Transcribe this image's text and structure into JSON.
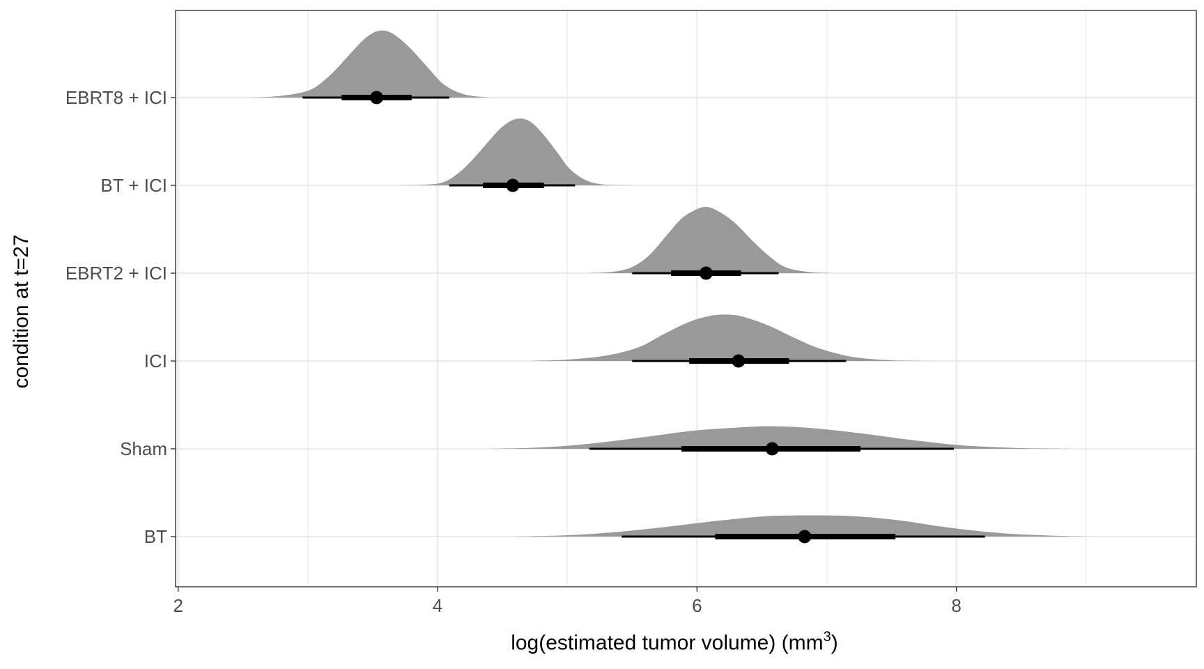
{
  "chart_data": {
    "type": "halfeye",
    "xlabel": "log(estimated tumor volume) (mm",
    "xlabel_sup": "3",
    "xlabel_close": ")",
    "ylabel": "condition at t=27",
    "xlim": [
      1.98,
      9.85
    ],
    "x_ticks": [
      2,
      4,
      6,
      8
    ],
    "x_minor": [
      3,
      5,
      7,
      9
    ],
    "grid": true,
    "colors": {
      "density": "#999999",
      "interval": "#000000",
      "grid": "#ebebeb",
      "panel_border": "#333333"
    },
    "categories": [
      "EBRT8 + ICI",
      "BT + ICI",
      "EBRT2 + ICI",
      "ICI",
      "Sham",
      "BT"
    ],
    "series": [
      {
        "label": "EBRT8 + ICI",
        "median": 3.53,
        "ci66": [
          3.26,
          3.8
        ],
        "ci95": [
          2.96,
          4.09
        ],
        "density": [
          [
            2.55,
            0
          ],
          [
            2.7,
            0.01
          ],
          [
            2.85,
            0.04
          ],
          [
            3.0,
            0.1
          ],
          [
            3.1,
            0.21
          ],
          [
            3.22,
            0.42
          ],
          [
            3.34,
            0.67
          ],
          [
            3.45,
            0.88
          ],
          [
            3.55,
            0.98
          ],
          [
            3.65,
            0.94
          ],
          [
            3.78,
            0.74
          ],
          [
            3.92,
            0.45
          ],
          [
            4.05,
            0.19
          ],
          [
            4.2,
            0.05
          ],
          [
            4.4,
            0
          ]
        ]
      },
      {
        "label": "BT + ICI",
        "median": 4.58,
        "ci66": [
          4.35,
          4.82
        ],
        "ci95": [
          4.09,
          5.06
        ],
        "density": [
          [
            3.7,
            0
          ],
          [
            3.9,
            0.01
          ],
          [
            4.05,
            0.05
          ],
          [
            4.18,
            0.21
          ],
          [
            4.3,
            0.44
          ],
          [
            4.4,
            0.66
          ],
          [
            4.5,
            0.86
          ],
          [
            4.6,
            0.97
          ],
          [
            4.7,
            0.95
          ],
          [
            4.8,
            0.78
          ],
          [
            4.92,
            0.49
          ],
          [
            5.02,
            0.24
          ],
          [
            5.15,
            0.07
          ],
          [
            5.3,
            0.01
          ],
          [
            5.55,
            0
          ]
        ]
      },
      {
        "label": "EBRT2 + ICI",
        "median": 6.07,
        "ci66": [
          5.8,
          6.34
        ],
        "ci95": [
          5.5,
          6.63
        ],
        "density": [
          [
            5.15,
            0
          ],
          [
            5.35,
            0.02
          ],
          [
            5.5,
            0.09
          ],
          [
            5.63,
            0.26
          ],
          [
            5.76,
            0.54
          ],
          [
            5.87,
            0.78
          ],
          [
            5.97,
            0.91
          ],
          [
            6.07,
            0.97
          ],
          [
            6.17,
            0.9
          ],
          [
            6.29,
            0.74
          ],
          [
            6.42,
            0.49
          ],
          [
            6.55,
            0.26
          ],
          [
            6.68,
            0.09
          ],
          [
            6.85,
            0.02
          ],
          [
            7.05,
            0
          ]
        ]
      },
      {
        "label": "ICI",
        "median": 6.32,
        "ci66": [
          5.94,
          6.71
        ],
        "ci95": [
          5.5,
          7.15
        ],
        "density": [
          [
            4.7,
            0
          ],
          [
            5.0,
            0.02
          ],
          [
            5.3,
            0.08
          ],
          [
            5.55,
            0.2
          ],
          [
            5.75,
            0.4
          ],
          [
            5.95,
            0.58
          ],
          [
            6.1,
            0.66
          ],
          [
            6.22,
            0.68
          ],
          [
            6.35,
            0.65
          ],
          [
            6.55,
            0.52
          ],
          [
            6.75,
            0.34
          ],
          [
            6.95,
            0.18
          ],
          [
            7.2,
            0.06
          ],
          [
            7.5,
            0.01
          ],
          [
            7.85,
            0
          ]
        ]
      },
      {
        "label": "Sham",
        "median": 6.58,
        "ci66": [
          5.88,
          7.26
        ],
        "ci95": [
          5.17,
          7.98
        ],
        "density": [
          [
            4.4,
            0
          ],
          [
            4.8,
            0.02
          ],
          [
            5.15,
            0.07
          ],
          [
            5.55,
            0.16
          ],
          [
            5.95,
            0.26
          ],
          [
            6.3,
            0.31
          ],
          [
            6.6,
            0.33
          ],
          [
            6.9,
            0.3
          ],
          [
            7.25,
            0.23
          ],
          [
            7.65,
            0.13
          ],
          [
            8.05,
            0.05
          ],
          [
            8.5,
            0.01
          ],
          [
            8.9,
            0
          ]
        ]
      },
      {
        "label": "BT",
        "median": 6.83,
        "ci66": [
          6.14,
          7.53
        ],
        "ci95": [
          5.42,
          8.22
        ],
        "density": [
          [
            4.6,
            0
          ],
          [
            5.0,
            0.02
          ],
          [
            5.4,
            0.07
          ],
          [
            5.8,
            0.15
          ],
          [
            6.2,
            0.24
          ],
          [
            6.55,
            0.3
          ],
          [
            6.9,
            0.31
          ],
          [
            7.2,
            0.3
          ],
          [
            7.55,
            0.24
          ],
          [
            7.95,
            0.13
          ],
          [
            8.35,
            0.05
          ],
          [
            8.8,
            0.01
          ],
          [
            9.1,
            0
          ]
        ]
      }
    ]
  }
}
